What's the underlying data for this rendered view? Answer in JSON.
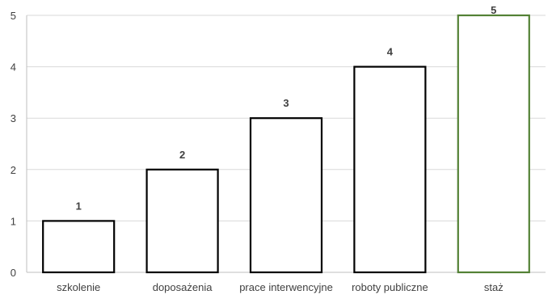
{
  "chart_data": {
    "type": "bar",
    "categories": [
      "szkolenie",
      "doposażenia",
      "prace interwencyjne",
      "roboty publiczne",
      "staż"
    ],
    "values": [
      1,
      2,
      3,
      4,
      5
    ],
    "data_labels": [
      "1",
      "2",
      "3",
      "4",
      "5"
    ],
    "ylim": [
      0,
      5
    ],
    "yticks": [
      "0",
      "1",
      "2",
      "3",
      "4",
      "5"
    ],
    "grid": true,
    "colors": {
      "bar_fill": "#ffffff",
      "bar_stroke": "#000000",
      "highlight_stroke": "#538135",
      "grid": "#d9d9d9",
      "axis": "#bfbfbf",
      "label": "#404040"
    },
    "highlight_index": 4
  }
}
